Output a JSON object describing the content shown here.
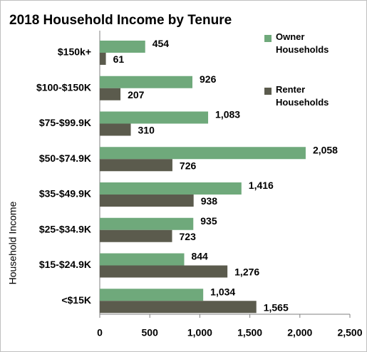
{
  "chart_data": {
    "type": "hbar",
    "title": "2018 Household Income by Tenure",
    "y_label": "Household Income",
    "categories": [
      "$150k+",
      "$100-$150K",
      "$75-$99.9K",
      "$50-$74.9K",
      "$35-$49.9K",
      "$25-$34.9K",
      "$15-$24.9K",
      "<$15K"
    ],
    "series": [
      {
        "name": "Owner Households",
        "color": "#6fa97b",
        "values": [
          454,
          926,
          1083,
          2058,
          1416,
          935,
          844,
          1034
        ],
        "value_labels": [
          "454",
          "926",
          "1,083",
          "2,058",
          "1,416",
          "935",
          "844",
          "1,034"
        ]
      },
      {
        "name": "Renter Households",
        "color": "#5b5b4d",
        "values": [
          61,
          207,
          310,
          726,
          938,
          723,
          1276,
          1565
        ],
        "value_labels": [
          "61",
          "207",
          "310",
          "726",
          "938",
          "723",
          "1,276",
          "1,565"
        ]
      }
    ],
    "xlim": [
      0,
      2500
    ],
    "xticks": [
      0,
      500,
      {
        "value": 1000,
        "label": "1,000"
      },
      {
        "value": 1500,
        "label": "1,500"
      },
      {
        "value": 2000,
        "label": "2,000"
      },
      {
        "value": 2500,
        "label": "2,500"
      }
    ],
    "legend": "top-right",
    "grid": false
  }
}
